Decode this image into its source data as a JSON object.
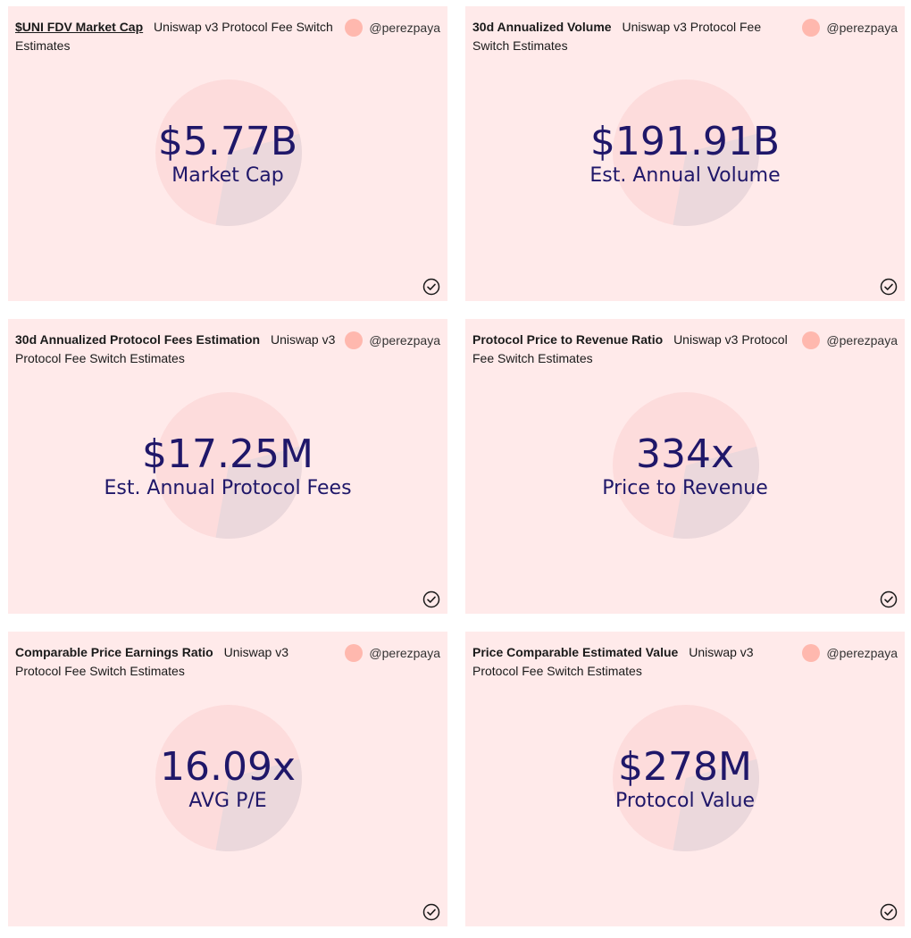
{
  "colors": {
    "card_bg": "#ffeaea",
    "circle_top": "#fddcdc",
    "circle_bottom": "#ebd8dc",
    "value_text": "#1f1769",
    "avatar": "#ffb8ae"
  },
  "cards": [
    {
      "title": "$UNI FDV Market Cap",
      "subtitle": "Uniswap v3 Protocol Fee Switch Estimates",
      "author": "@perezpaya",
      "value": "$5.77B",
      "label": "Market Cap",
      "fill": 0.32,
      "icon": "check-circle-icon"
    },
    {
      "title": "30d Annualized Volume",
      "subtitle": "Uniswap v3 Protocol Fee Switch Estimates",
      "author": "@perezpaya",
      "value": "$191.91B",
      "label": "Est. Annual Volume",
      "fill": 0.32,
      "icon": "check-circle-icon"
    },
    {
      "title": "30d Annualized Protocol Fees Estimation",
      "subtitle": "Uniswap v3 Protocol Fee Switch Estimates",
      "author": "@perezpaya",
      "value": "$17.25M",
      "label": "Est. Annual Protocol Fees",
      "fill": 0.32,
      "icon": "check-circle-icon"
    },
    {
      "title": "Protocol Price to Revenue Ratio",
      "subtitle": "Uniswap v3 Protocol Fee Switch Estimates",
      "author": "@perezpaya",
      "value": "334x",
      "label": "Price to Revenue",
      "fill": 0.32,
      "icon": "check-circle-icon"
    },
    {
      "title": "Comparable Price Earnings Ratio",
      "subtitle": "Uniswap v3 Protocol Fee Switch Estimates",
      "author": "@perezpaya",
      "value": "16.09x",
      "label": "AVG P/E",
      "fill": 0.32,
      "icon": "check-circle-icon"
    },
    {
      "title": "Price Comparable Estimated Value",
      "subtitle": "Uniswap v3 Protocol Fee Switch Estimates",
      "author": "@perezpaya",
      "value": "$278M",
      "label": "Protocol Value",
      "fill": 0.32,
      "icon": "check-circle-icon"
    }
  ]
}
